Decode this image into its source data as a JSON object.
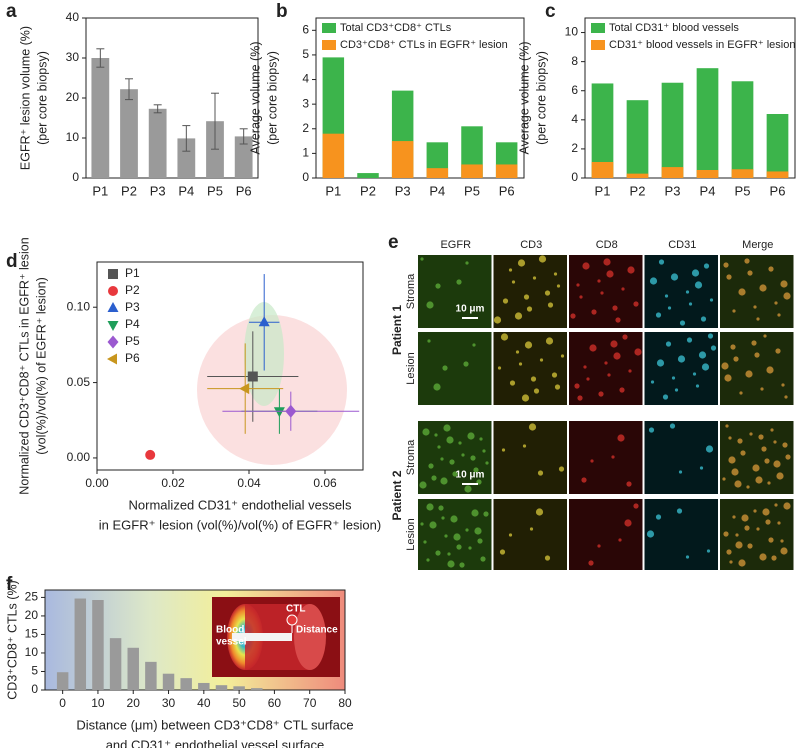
{
  "chart_data": [
    {
      "panel": "a",
      "type": "bar",
      "categories": [
        "P1",
        "P2",
        "P3",
        "P4",
        "P5",
        "P6"
      ],
      "values": [
        30,
        22.2,
        17.3,
        9.9,
        14.2,
        10.4
      ],
      "errors": [
        2.3,
        2.6,
        1,
        3.2,
        7,
        1.9
      ],
      "color": "#9a9a9a",
      "ylabel": [
        "EGFR⁺ lesion volume (%)",
        "(per core biopsy)"
      ],
      "ylim": [
        0,
        40
      ],
      "yticks": [
        0,
        10,
        20,
        30,
        40
      ]
    },
    {
      "panel": "b",
      "type": "bar",
      "overlay": true,
      "categories": [
        "P1",
        "P2",
        "P3",
        "P4",
        "P5",
        "P6"
      ],
      "series": [
        {
          "name": "Total CD3⁺CD8⁺ CTLs",
          "color": "#3cb44b",
          "values": [
            4.9,
            0.2,
            3.55,
            1.45,
            2.1,
            1.45
          ]
        },
        {
          "name": "CD3⁺CD8⁺ CTLs in EGFR⁺ lesion",
          "color": "#f7931e",
          "values": [
            1.8,
            0,
            1.5,
            0.4,
            0.55,
            0.55
          ]
        }
      ],
      "ylabel": [
        "Average volume (%)",
        "(per core biopsy)"
      ],
      "ylim": [
        0,
        6.5
      ],
      "yticks": [
        0,
        1,
        2,
        3,
        4,
        5,
        6
      ],
      "legend": "upper left"
    },
    {
      "panel": "c",
      "type": "bar",
      "overlay": true,
      "categories": [
        "P1",
        "P2",
        "P3",
        "P4",
        "P5",
        "P6"
      ],
      "series": [
        {
          "name": "Total CD31⁺ blood vessels",
          "color": "#3cb44b",
          "values": [
            6.5,
            5.35,
            6.55,
            7.55,
            6.65,
            4.4
          ]
        },
        {
          "name": "CD31⁺ blood vessels in EGFR⁺ lesion",
          "color": "#f7931e",
          "values": [
            1.1,
            0.3,
            0.75,
            0.55,
            0.6,
            0.45
          ]
        }
      ],
      "ylabel": [
        "Average volume (%)",
        "(per core biopsy)"
      ],
      "ylim": [
        0,
        11
      ],
      "yticks": [
        0,
        2,
        4,
        6,
        8,
        10
      ],
      "legend": "upper left"
    },
    {
      "panel": "d",
      "type": "scatter",
      "series": [
        {
          "name": "P1",
          "color": "#555555",
          "marker": "square",
          "x": [
            0.041
          ],
          "y": [
            0.054
          ],
          "xerr": [
            0.012
          ],
          "yerr": [
            0.03
          ]
        },
        {
          "name": "P2",
          "color": "#e8383d",
          "marker": "circle",
          "x": [
            0.014
          ],
          "y": [
            0.002
          ],
          "xerr": [
            0
          ],
          "yerr": [
            0
          ]
        },
        {
          "name": "P3",
          "color": "#2b5fce",
          "marker": "triangle-up",
          "x": [
            0.044
          ],
          "y": [
            0.09
          ],
          "xerr": [
            0.004
          ],
          "yerr": [
            0.032
          ]
        },
        {
          "name": "P4",
          "color": "#1f9e5a",
          "marker": "triangle-down",
          "x": [
            0.048
          ],
          "y": [
            0.031
          ],
          "xerr": [
            0.01
          ],
          "yerr": [
            0.015
          ]
        },
        {
          "name": "P5",
          "color": "#9b59d0",
          "marker": "diamond",
          "x": [
            0.051
          ],
          "y": [
            0.031
          ],
          "xerr": [
            0.018
          ],
          "yerr": [
            0.013
          ]
        },
        {
          "name": "P6",
          "color": "#c8961e",
          "marker": "triangle-left",
          "x": [
            0.039
          ],
          "y": [
            0.046
          ],
          "xerr": [
            0.01
          ],
          "yerr": [
            0.03
          ]
        }
      ],
      "xlabel": [
        "Normalized CD31⁺ endothelial vessels",
        "in EGFR⁺ lesion (vol(%)/vol(%) of EGFR⁺ lesion)"
      ],
      "ylabel": [
        "Normalized CD3⁺CD8⁺ CTLs in EGFR⁺ lesion",
        "(vol(%)/vol(%) of EGFR⁺ lesion)"
      ],
      "xlim": [
        0,
        0.07
      ],
      "xticks": [
        {
          "value": 0,
          "label": "0.00"
        },
        {
          "value": 0.02,
          "label": "0.02"
        },
        {
          "value": 0.04,
          "label": "0.04"
        },
        {
          "value": 0.06,
          "label": "0.06"
        }
      ],
      "ylim": [
        -0.008,
        0.13
      ],
      "yticks": [
        {
          "value": 0,
          "label": "0.00"
        },
        {
          "value": 0.05,
          "label": "0.05"
        },
        {
          "value": 0.1,
          "label": "0.10"
        }
      ],
      "legend": "upper left"
    },
    {
      "panel": "f",
      "type": "bar",
      "x": [
        0,
        5,
        10,
        15,
        20,
        25,
        30,
        35,
        40,
        45,
        50,
        55
      ],
      "values": [
        4.8,
        24.7,
        24.3,
        14,
        11.4,
        7.6,
        4.4,
        3.2,
        1.9,
        1.3,
        1,
        0.5
      ],
      "color": "#9a9a9a",
      "xlim": [
        -5,
        80
      ],
      "xticks": [
        0,
        10,
        20,
        30,
        40,
        50,
        60,
        70,
        80
      ],
      "ylim": [
        0,
        27
      ],
      "yticks": [
        0,
        5,
        10,
        15,
        20,
        25
      ],
      "ylabel": [
        "CD3⁺CD8⁺ CTLs (%)"
      ],
      "xlabel": [
        "Distance (μm) between CD3⁺CD8⁺ CTL surface",
        "and CD31⁺ endothelial vessel surface"
      ],
      "inset_labels": [
        "CTL",
        "Distance",
        "Blood",
        "vessel"
      ]
    }
  ],
  "image_panel": {
    "panel": "e",
    "columns": [
      "EGFR",
      "CD3",
      "CD8",
      "CD31",
      "Merge"
    ],
    "patients": [
      {
        "name": "Patient 1",
        "rows": [
          "Stroma",
          "Lesion"
        ]
      },
      {
        "name": "Patient 2",
        "rows": [
          "Stroma",
          "Lesion"
        ]
      }
    ],
    "scale_bar": "10 μm"
  }
}
